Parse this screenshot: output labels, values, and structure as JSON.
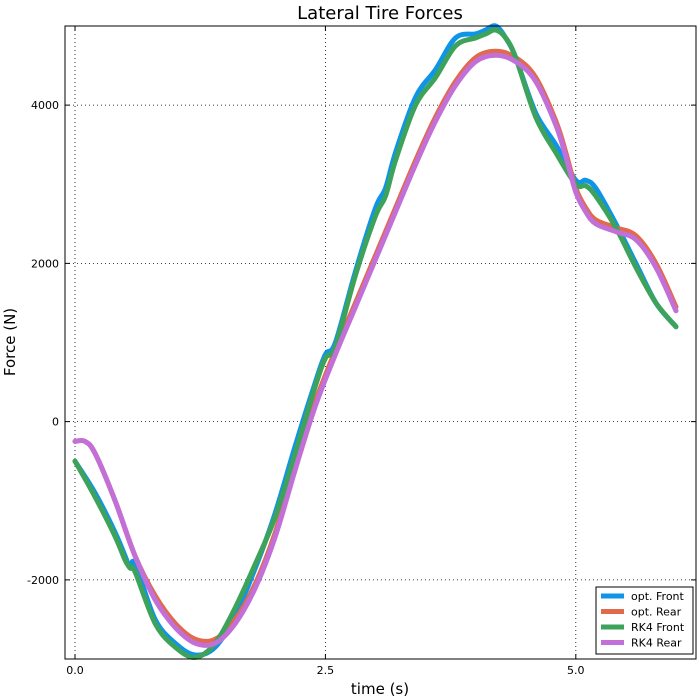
{
  "chart_data": {
    "type": "line",
    "title": "Lateral Tire Forces",
    "xlabel": "time (s)",
    "ylabel": "Force (N)",
    "xlim": [
      -0.1,
      6.2
    ],
    "ylim": [
      -3000,
      5000
    ],
    "xticks": [
      0.0,
      2.5,
      5.0
    ],
    "xtick_labels": [
      "0.0",
      "2.5",
      "5.0"
    ],
    "yticks": [
      -2000,
      0,
      2000,
      4000
    ],
    "ytick_labels": [
      "-2000",
      "0",
      "2000",
      "4000"
    ],
    "grid": true,
    "legend_position": "bottom-right",
    "series": [
      {
        "name": "opt. Front",
        "color": "#0e95e8",
        "x": [
          0.0,
          0.2,
          0.4,
          0.5,
          0.55,
          0.6,
          0.8,
          1.0,
          1.2,
          1.4,
          1.6,
          1.8,
          2.0,
          2.2,
          2.4,
          2.5,
          2.6,
          2.8,
          3.0,
          3.1,
          3.2,
          3.4,
          3.6,
          3.8,
          4.0,
          4.1,
          4.2,
          4.3,
          4.4,
          4.6,
          4.8,
          5.0,
          5.1,
          5.2,
          5.4,
          5.6,
          5.8,
          6.0
        ],
        "y": [
          -500,
          -900,
          -1400,
          -1700,
          -1850,
          -1800,
          -2500,
          -2800,
          -2950,
          -2850,
          -2450,
          -1850,
          -1150,
          -300,
          500,
          850,
          1000,
          1900,
          2700,
          2950,
          3400,
          4100,
          4450,
          4850,
          4900,
          4950,
          5000,
          4850,
          4600,
          3900,
          3500,
          3050,
          3050,
          2950,
          2500,
          2000,
          1500,
          1200
        ]
      },
      {
        "name": "opt. Rear",
        "color": "#e2694a",
        "x": [
          0.0,
          0.1,
          0.2,
          0.4,
          0.6,
          0.8,
          1.0,
          1.2,
          1.4,
          1.6,
          1.8,
          2.0,
          2.2,
          2.4,
          2.6,
          2.8,
          3.0,
          3.2,
          3.4,
          3.6,
          3.8,
          4.0,
          4.2,
          4.4,
          4.6,
          4.8,
          4.9,
          5.0,
          5.1,
          5.2,
          5.4,
          5.6,
          5.8,
          6.0
        ],
        "y": [
          -250,
          -250,
          -400,
          -1000,
          -1700,
          -2200,
          -2550,
          -2750,
          -2750,
          -2500,
          -2050,
          -1400,
          -550,
          250,
          900,
          1500,
          2100,
          2700,
          3300,
          3850,
          4300,
          4600,
          4680,
          4600,
          4350,
          3800,
          3400,
          2950,
          2700,
          2550,
          2450,
          2350,
          2000,
          1450
        ]
      },
      {
        "name": "RK4 Front",
        "color": "#3ea35a",
        "x": [
          0.0,
          0.2,
          0.4,
          0.5,
          0.55,
          0.6,
          0.8,
          1.0,
          1.2,
          1.4,
          1.6,
          1.8,
          2.0,
          2.2,
          2.4,
          2.5,
          2.6,
          2.8,
          3.0,
          3.1,
          3.2,
          3.4,
          3.6,
          3.8,
          4.0,
          4.1,
          4.2,
          4.3,
          4.4,
          4.6,
          4.8,
          5.0,
          5.1,
          5.2,
          5.4,
          5.6,
          5.8,
          6.0
        ],
        "y": [
          -500,
          -950,
          -1450,
          -1750,
          -1850,
          -1900,
          -2550,
          -2850,
          -2980,
          -2800,
          -2350,
          -1800,
          -1200,
          -400,
          450,
          800,
          950,
          1850,
          2600,
          2850,
          3300,
          4000,
          4350,
          4750,
          4850,
          4900,
          4950,
          4850,
          4600,
          3850,
          3400,
          3000,
          2980,
          2850,
          2450,
          1950,
          1500,
          1200
        ]
      },
      {
        "name": "RK4 Rear",
        "color": "#c26fd8",
        "x": [
          0.0,
          0.1,
          0.2,
          0.4,
          0.6,
          0.8,
          1.0,
          1.2,
          1.4,
          1.6,
          1.8,
          2.0,
          2.2,
          2.4,
          2.6,
          2.8,
          3.0,
          3.2,
          3.4,
          3.6,
          3.8,
          4.0,
          4.2,
          4.4,
          4.6,
          4.8,
          4.9,
          5.0,
          5.1,
          5.2,
          5.4,
          5.6,
          5.8,
          6.0
        ],
        "y": [
          -250,
          -250,
          -400,
          -1000,
          -1700,
          -2250,
          -2600,
          -2800,
          -2800,
          -2550,
          -2100,
          -1450,
          -600,
          200,
          850,
          1450,
          2050,
          2650,
          3250,
          3800,
          4250,
          4550,
          4630,
          4550,
          4300,
          3750,
          3350,
          2900,
          2650,
          2500,
          2400,
          2300,
          1950,
          1400
        ]
      }
    ]
  }
}
